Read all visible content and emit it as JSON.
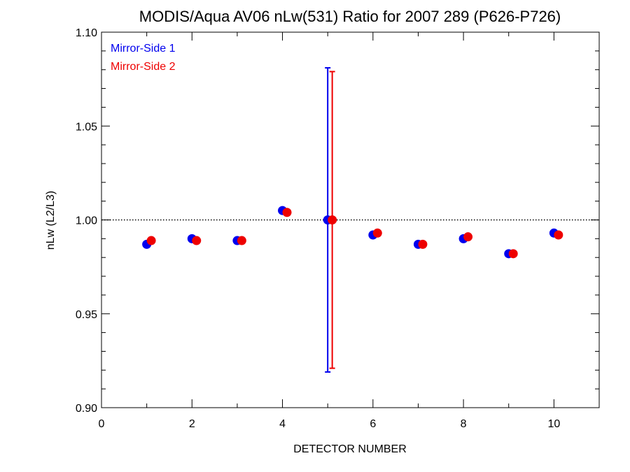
{
  "chart_data": {
    "type": "scatter",
    "title": "MODIS/Aqua AV06 nLw(531) Ratio for 2007 289 (P626-P726)",
    "xlabel": "DETECTOR NUMBER",
    "ylabel": "nLw (L2/L3)",
    "xlim": [
      0,
      11
    ],
    "ylim": [
      0.9,
      1.1
    ],
    "xticks": [
      0,
      2,
      4,
      6,
      8,
      10
    ],
    "xtick_labels": [
      "0",
      "2",
      "4",
      "6",
      "8",
      "10"
    ],
    "yticks": [
      0.9,
      0.95,
      1.0,
      1.05,
      1.1
    ],
    "ytick_labels": [
      "0.90",
      "0.95",
      "1.00",
      "1.05",
      "1.10"
    ],
    "reference_line": {
      "y": 1.0,
      "style": "dotted"
    },
    "legend_position": "top-left",
    "series": [
      {
        "name": "Mirror-Side 1",
        "color": "#0000ee",
        "x": [
          1,
          2,
          3,
          4,
          5,
          6,
          7,
          8,
          9,
          10
        ],
        "y": [
          0.987,
          0.99,
          0.989,
          1.005,
          1.0,
          0.992,
          0.987,
          0.99,
          0.982,
          0.993
        ],
        "error_bars": [
          {
            "x": 5,
            "low": 0.919,
            "high": 1.081
          }
        ]
      },
      {
        "name": "Mirror-Side 2",
        "color": "#ee0000",
        "x": [
          1.1,
          2.1,
          3.1,
          4.1,
          5.1,
          6.1,
          7.1,
          8.1,
          9.1,
          10.1
        ],
        "y": [
          0.989,
          0.989,
          0.989,
          1.004,
          1.0,
          0.993,
          0.987,
          0.991,
          0.982,
          0.992
        ],
        "error_bars": [
          {
            "x": 5.1,
            "low": 0.921,
            "high": 1.079
          }
        ]
      }
    ]
  }
}
